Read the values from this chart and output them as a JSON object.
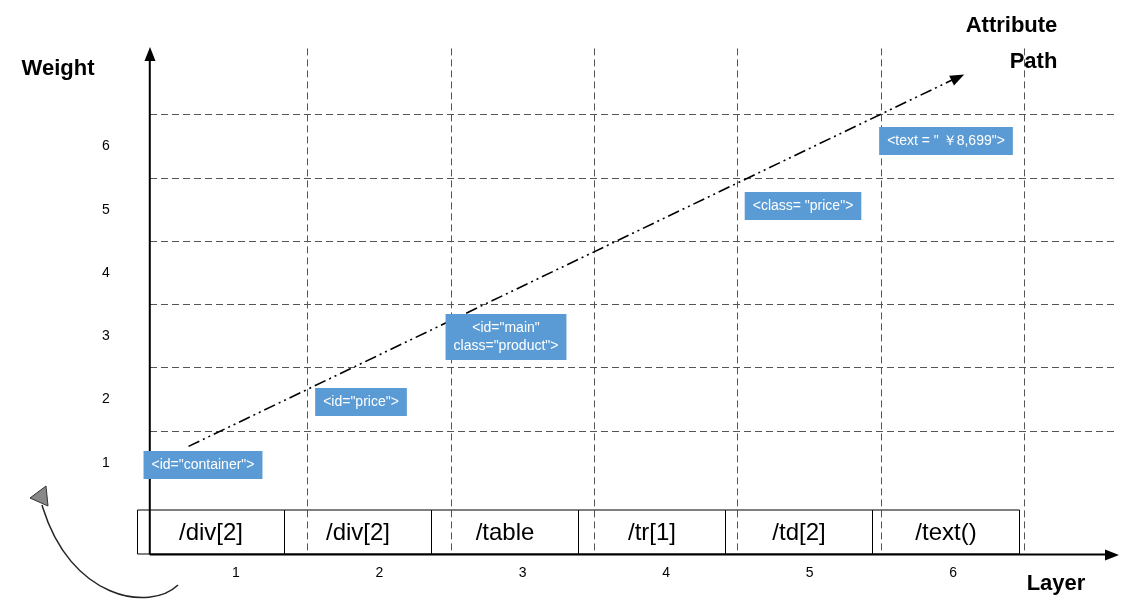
{
  "chart_data": {
    "type": "line",
    "xlabel": "Layer",
    "ylabel": "Weight",
    "series": [
      {
        "name": "Attribute Path",
        "color": "#000000",
        "x": [
          0.67,
          6.03
        ],
        "values": [
          1.26,
          7.09
        ]
      }
    ],
    "xlim": [
      0.4,
      7.15
    ],
    "ylim": [
      -0.45,
      7.55
    ],
    "xticks": [
      1,
      {
        "value": 1.5,
        "label": null
      },
      2,
      {
        "value": 2.5,
        "label": null
      },
      3,
      {
        "value": 3.5,
        "label": null
      },
      4,
      {
        "value": 4.5,
        "label": null
      },
      5,
      {
        "value": 5.5,
        "label": null
      },
      6,
      {
        "value": 6.5,
        "label": null
      }
    ],
    "yticks": [
      1,
      {
        "value": 1.5,
        "label": null
      },
      2,
      {
        "value": 2.5,
        "label": null
      },
      3,
      {
        "value": 3.5,
        "label": null
      },
      4,
      {
        "value": 4.5,
        "label": null
      },
      5,
      {
        "value": 5.5,
        "label": null
      },
      6,
      {
        "value": 6.5,
        "label": null
      }
    ],
    "grid": true,
    "line_style": "dashed",
    "annotations": [
      "<id=\"container\">",
      "<id=\"price\">",
      "<id=\"main\" class=\"product\">",
      "<class= \"price\">",
      "<text = \" ￥8,699\">",
      "/div[2]",
      "/div[2]",
      "/table",
      "/tr[1]",
      "/td[2]",
      "/text()"
    ]
  }
}
